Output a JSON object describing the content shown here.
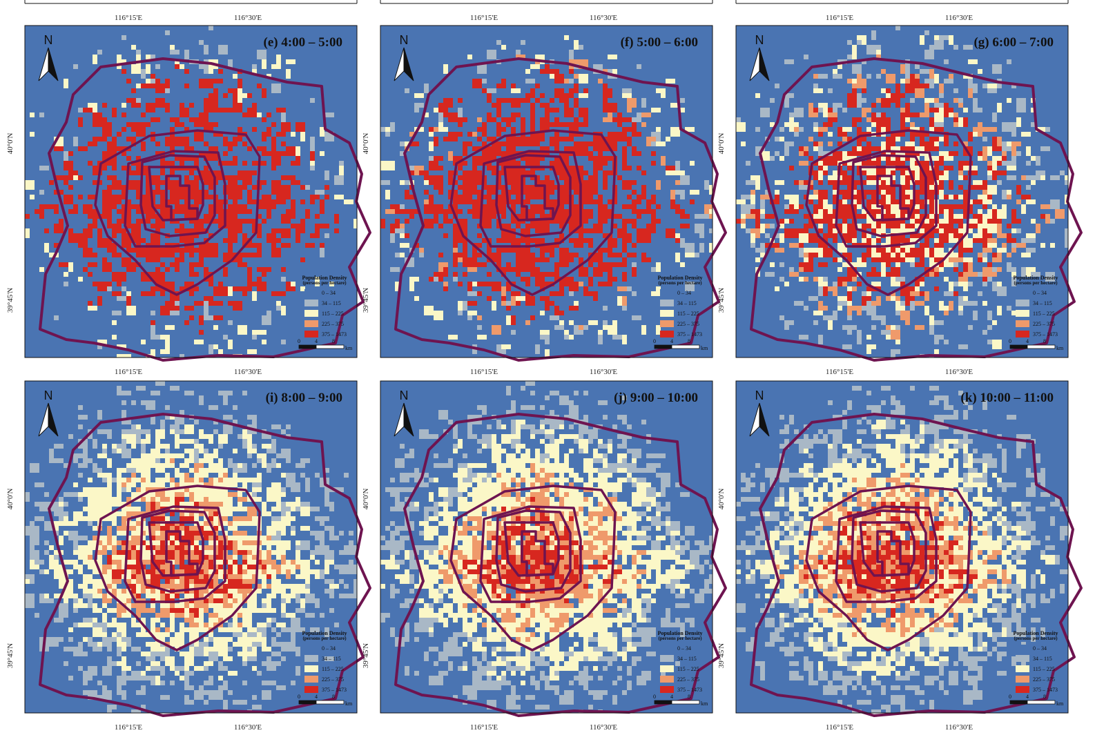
{
  "colors": {
    "background": "#4a74b2",
    "ring": "#6e1450",
    "class_colors": [
      "#4a74b2",
      "#a9b8c6",
      "#fbf7c7",
      "#ef9a6b",
      "#d7271f"
    ]
  },
  "top_x_ticks": [
    "116°15'E",
    "116°30'E"
  ],
  "x_ticks": [
    "116°15'E",
    "116°30'E"
  ],
  "y_ticks": [
    "40°0'N",
    "39°45'N"
  ],
  "legend": {
    "title": "Population Density",
    "subtitle": "(persons per hectare)",
    "classes": [
      "0 – 34",
      "34 – 115",
      "115 – 225",
      "225 – 375",
      "375 – 1473"
    ],
    "scale_labels": [
      "0",
      "4",
      "8"
    ],
    "scale_unit": "km"
  },
  "north_label": "N",
  "panels": [
    {
      "title": "(e) 4:00 – 5:00",
      "level": 0.15
    },
    {
      "title": "(f) 5:00 – 6:00",
      "level": 0.22
    },
    {
      "title": "(g) 6:00 – 7:00",
      "level": 0.38
    },
    {
      "title": "(i) 8:00 – 9:00",
      "level": 0.65
    },
    {
      "title": "(j) 9:00 – 10:00",
      "level": 0.7
    },
    {
      "title": "(k) 10:00 – 11:00",
      "level": 0.75
    }
  ]
}
